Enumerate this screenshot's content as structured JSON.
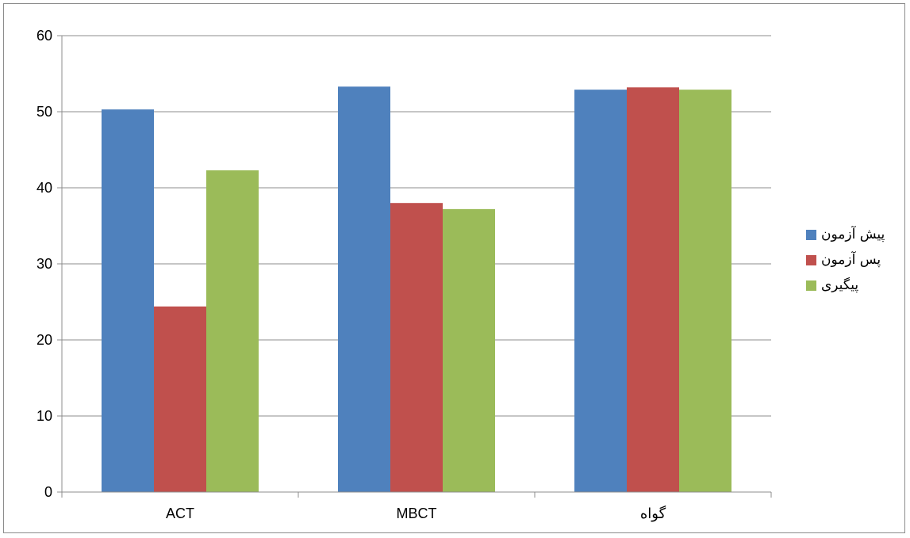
{
  "chart_data": {
    "type": "bar",
    "categories": [
      "ACT",
      "MBCT",
      "گواه"
    ],
    "series": [
      {
        "name": "پیش آزمون",
        "color": "#4F81BD",
        "values": [
          50.3,
          53.3,
          52.9
        ]
      },
      {
        "name": "پس آزمون",
        "color": "#C0504D",
        "values": [
          24.4,
          38.0,
          53.2
        ]
      },
      {
        "name": "پیگیری",
        "color": "#9BBB59",
        "values": [
          42.3,
          37.2,
          52.9
        ]
      }
    ],
    "title": "",
    "xlabel": "",
    "ylabel": "",
    "ylim": [
      0,
      60
    ],
    "yticks": [
      "0",
      "10",
      "20",
      "30",
      "40",
      "50",
      "60"
    ],
    "grid": true,
    "legend_position": "right"
  }
}
